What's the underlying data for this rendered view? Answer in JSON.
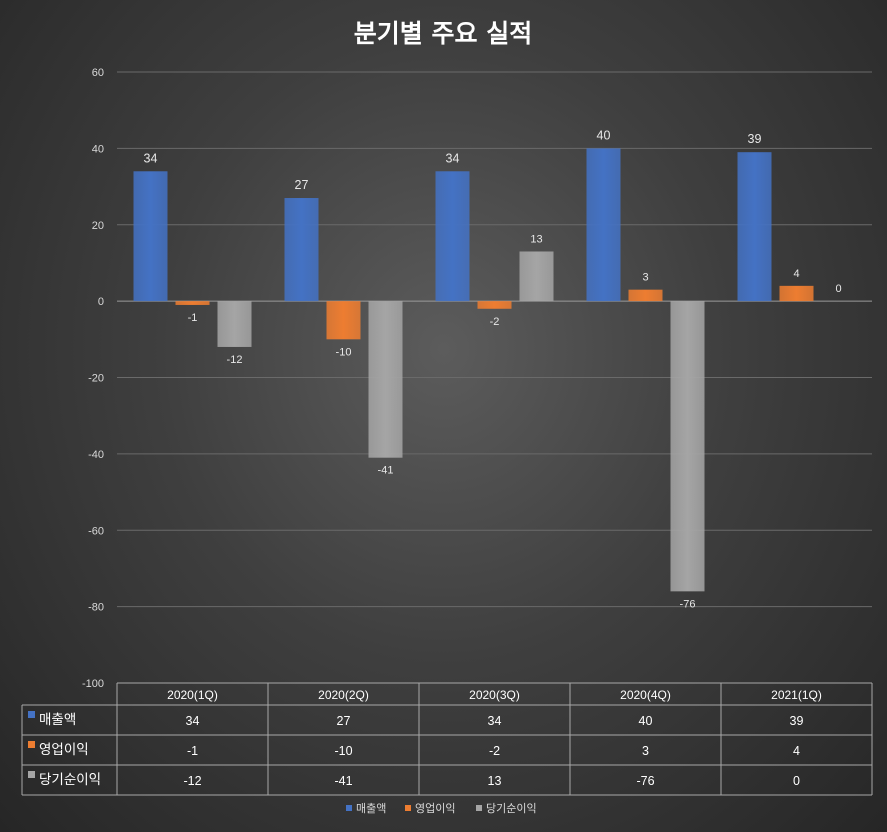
{
  "chart_data": {
    "type": "bar",
    "title": "분기별 주요 실적",
    "categories": [
      "2020(1Q)",
      "2020(2Q)",
      "2020(3Q)",
      "2020(4Q)",
      "2021(1Q)"
    ],
    "series": [
      {
        "name": "매출액",
        "values": [
          34,
          27,
          34,
          40,
          39
        ],
        "color": "#4472c4"
      },
      {
        "name": "영업이익",
        "values": [
          -1,
          -10,
          -2,
          3,
          4
        ],
        "color": "#ed7d31"
      },
      {
        "name": "당기순이익",
        "values": [
          -12,
          -41,
          13,
          -76,
          0
        ],
        "color": "#a5a5a5"
      }
    ],
    "ylim": [
      -100,
      60
    ],
    "yticks": [
      60,
      40,
      20,
      0,
      -20,
      -40,
      -60,
      -80,
      -100
    ],
    "grid": true,
    "data_table": true,
    "legend_position": "bottom"
  }
}
